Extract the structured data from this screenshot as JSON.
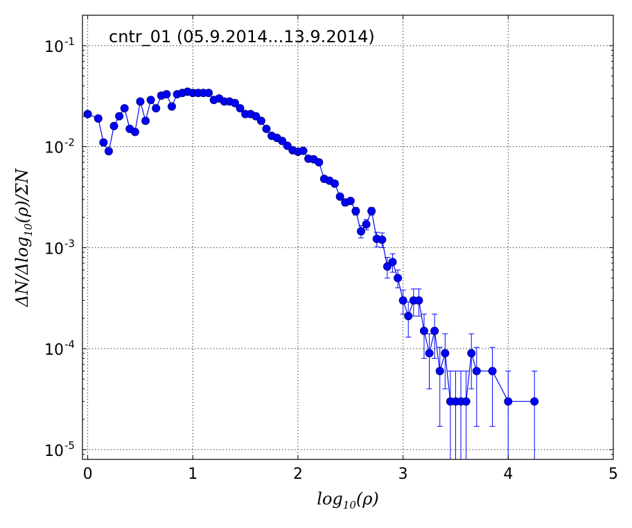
{
  "chart_data": {
    "type": "line",
    "title": "cntr_01 (05.9.2014...13.9.2014)",
    "xlabel": "log10(ρ)",
    "ylabel": "ΔN/Δlog10(ρ)/ΣN",
    "xlim": [
      -0.05,
      5
    ],
    "ylim": [
      8e-06,
      0.2
    ],
    "yscale": "log",
    "grid": true,
    "x_ticks": [
      0,
      1,
      2,
      3,
      4,
      5
    ],
    "x_tick_labels": [
      "0",
      "1",
      "2",
      "3",
      "4",
      "5"
    ],
    "y_ticks": [
      1e-05,
      0.0001,
      0.001,
      0.01,
      0.1
    ],
    "y_tick_labels": [
      "10",
      "10",
      "10",
      "10",
      "10"
    ],
    "y_tick_exponents": [
      "-5",
      "-4",
      "-3",
      "-2",
      "-1"
    ],
    "colors": {
      "series": "#0000ff",
      "marker_edge": "#000080"
    },
    "series": [
      {
        "x": [
          0.0,
          0.1,
          0.15,
          0.2,
          0.25,
          0.3,
          0.35,
          0.4,
          0.45,
          0.5,
          0.55,
          0.6,
          0.65,
          0.7,
          0.75,
          0.8,
          0.85,
          0.9,
          0.95,
          1.0,
          1.05,
          1.1,
          1.15,
          1.2,
          1.25,
          1.3,
          1.35,
          1.4,
          1.45,
          1.5,
          1.55,
          1.6,
          1.65,
          1.7,
          1.75,
          1.8,
          1.85,
          1.9,
          1.95,
          2.0,
          2.05,
          2.1,
          2.15,
          2.2,
          2.25,
          2.3,
          2.35,
          2.4,
          2.45,
          2.5,
          2.55,
          2.6,
          2.65,
          2.7,
          2.75,
          2.8,
          2.85,
          2.9,
          2.95,
          3.0,
          3.05,
          3.1,
          3.15,
          3.2,
          3.25,
          3.3,
          3.35,
          3.4,
          3.45,
          3.5,
          3.55,
          3.6,
          3.65,
          3.7,
          3.85,
          4.0,
          4.25
        ],
        "y": [
          0.021,
          0.019,
          0.011,
          0.009,
          0.016,
          0.02,
          0.024,
          0.015,
          0.014,
          0.028,
          0.018,
          0.029,
          0.024,
          0.032,
          0.033,
          0.025,
          0.033,
          0.034,
          0.035,
          0.034,
          0.034,
          0.034,
          0.034,
          0.029,
          0.03,
          0.028,
          0.028,
          0.027,
          0.024,
          0.021,
          0.021,
          0.02,
          0.018,
          0.015,
          0.0128,
          0.0122,
          0.0114,
          0.0102,
          0.0092,
          0.0089,
          0.0091,
          0.0076,
          0.0075,
          0.007,
          0.0048,
          0.0046,
          0.0043,
          0.0032,
          0.0028,
          0.0029,
          0.0023,
          0.00145,
          0.0017,
          0.0023,
          0.00122,
          0.0012,
          0.00065,
          0.00072,
          0.0005,
          0.0003,
          0.00021,
          0.0003,
          0.0003,
          0.00015,
          9e-05,
          0.00015,
          6e-05,
          9e-05,
          3e-05,
          3e-05,
          3e-05,
          3e-05,
          9e-05,
          6e-05,
          6e-05,
          3e-05,
          3e-05
        ],
        "y_err": [
          0,
          0,
          0,
          0,
          0,
          0,
          0,
          0,
          0,
          0,
          0,
          0,
          0,
          0,
          0,
          0,
          0,
          0,
          0,
          0,
          0,
          0,
          0,
          0,
          0,
          0,
          0,
          0,
          0,
          0,
          0,
          0,
          0,
          0,
          0,
          0,
          0,
          0,
          0,
          0,
          0,
          0,
          0,
          0,
          0,
          0,
          0,
          0,
          0.0002,
          0.0002,
          0.0002,
          0.0002,
          0.0002,
          0.0002,
          0.0002,
          0.0002,
          0.00015,
          0.00015,
          0.0001,
          8e-05,
          8e-05,
          9e-05,
          9e-05,
          7e-05,
          5e-05,
          7e-05,
          4.3e-05,
          5e-05,
          3e-05,
          3e-05,
          3e-05,
          3e-05,
          5e-05,
          4.3e-05,
          4.3e-05,
          3e-05,
          3e-05
        ]
      }
    ]
  }
}
